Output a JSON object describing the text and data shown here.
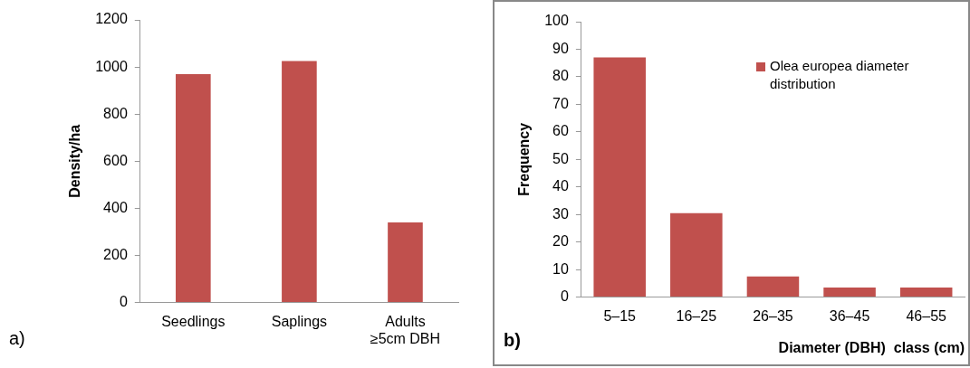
{
  "chart_data": [
    {
      "type": "bar",
      "ylabel": "Density/ha",
      "categories": [
        "Seedlings",
        "Saplings",
        "Adults\n≥5cm DBH"
      ],
      "values": [
        970,
        1025,
        340
      ],
      "color": "#c0504d",
      "ylim": [
        0,
        1200
      ],
      "yticks": [
        0,
        200,
        400,
        600,
        800,
        1000,
        1200
      ],
      "grid": false,
      "legend": false,
      "annotations": [
        "a)"
      ]
    },
    {
      "type": "bar",
      "ylabel": "Frequency",
      "xlabel": "Diameter (DBH)  class (cm)",
      "categories": [
        "5–15",
        "16–25",
        "26–35",
        "36–45",
        "46–55"
      ],
      "series": [
        {
          "name": "Olea europea diameter distribution",
          "color": "#c0504d",
          "values": [
            87,
            30.5,
            7.5,
            3.5,
            3.5
          ]
        }
      ],
      "ylim": [
        0,
        100
      ],
      "yticks": [
        0,
        10,
        20,
        30,
        40,
        50,
        60,
        70,
        80,
        90,
        100
      ],
      "grid": false,
      "legend": "top right",
      "annotations": [
        "b)"
      ]
    }
  ]
}
